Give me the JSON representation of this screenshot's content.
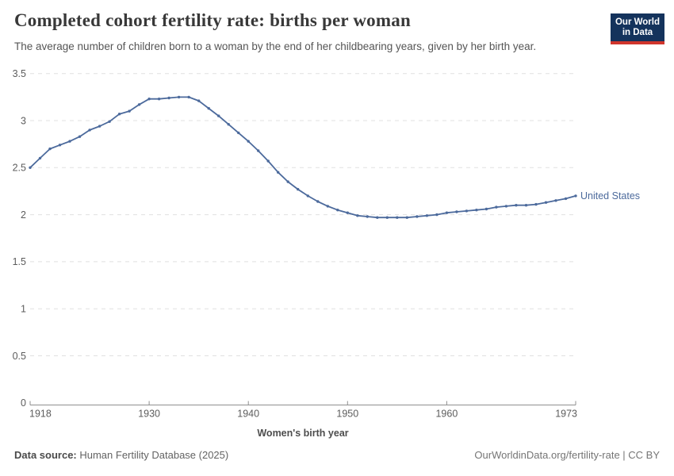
{
  "header": {
    "title": "Completed cohort fertility rate: births per woman",
    "subtitle": "The average number of children born to a woman by the end of her childbearing years, given by her birth year.",
    "logo_line1": "Our World",
    "logo_line2": "in Data",
    "logo_bg": "#14335c",
    "logo_stripe": "#d0352c"
  },
  "chart_data": {
    "type": "line",
    "title": "Completed cohort fertility rate: births per woman",
    "xlabel": "Women's birth year",
    "ylabel": "",
    "xlim": [
      1918,
      1973
    ],
    "ylim": [
      0,
      3.5
    ],
    "xticks": [
      1918,
      1930,
      1940,
      1950,
      1960,
      1973
    ],
    "yticks": [
      0,
      0.5,
      1,
      1.5,
      2,
      2.5,
      3,
      3.5
    ],
    "ytick_labels": [
      "0",
      "0.5",
      "1",
      "1.5",
      "2",
      "2.5",
      "3",
      "3.5"
    ],
    "grid": "horizontal-dashed",
    "legend_position": "end-of-line",
    "colors": {
      "line": "#4c6a9c",
      "grid": "#e0e0e0",
      "axis": "#8f8f8f",
      "tick_text": "#5c5c5c",
      "axis_title_text": "#4d4d4d"
    },
    "series": [
      {
        "name": "United States",
        "color": "#4c6a9c",
        "x": [
          1918,
          1919,
          1920,
          1921,
          1922,
          1923,
          1924,
          1925,
          1926,
          1927,
          1928,
          1929,
          1930,
          1931,
          1932,
          1933,
          1934,
          1935,
          1936,
          1937,
          1938,
          1939,
          1940,
          1941,
          1942,
          1943,
          1944,
          1945,
          1946,
          1947,
          1948,
          1949,
          1950,
          1951,
          1952,
          1953,
          1954,
          1955,
          1956,
          1957,
          1958,
          1959,
          1960,
          1961,
          1962,
          1963,
          1964,
          1965,
          1966,
          1967,
          1968,
          1969,
          1970,
          1971,
          1972,
          1973
        ],
        "values": [
          2.5,
          2.6,
          2.7,
          2.74,
          2.78,
          2.83,
          2.9,
          2.94,
          2.99,
          3.07,
          3.1,
          3.17,
          3.23,
          3.23,
          3.24,
          3.25,
          3.25,
          3.21,
          3.13,
          3.05,
          2.96,
          2.87,
          2.78,
          2.68,
          2.57,
          2.45,
          2.35,
          2.27,
          2.2,
          2.14,
          2.09,
          2.05,
          2.02,
          1.99,
          1.98,
          1.97,
          1.97,
          1.97,
          1.97,
          1.98,
          1.99,
          2.0,
          2.02,
          2.03,
          2.04,
          2.05,
          2.06,
          2.08,
          2.09,
          2.1,
          2.1,
          2.11,
          2.13,
          2.15,
          2.17,
          2.2
        ]
      }
    ]
  },
  "footer": {
    "source_label": "Data source:",
    "source_value": " Human Fertility Database (2025)",
    "credit": "OurWorldinData.org/fertility-rate | CC BY"
  }
}
